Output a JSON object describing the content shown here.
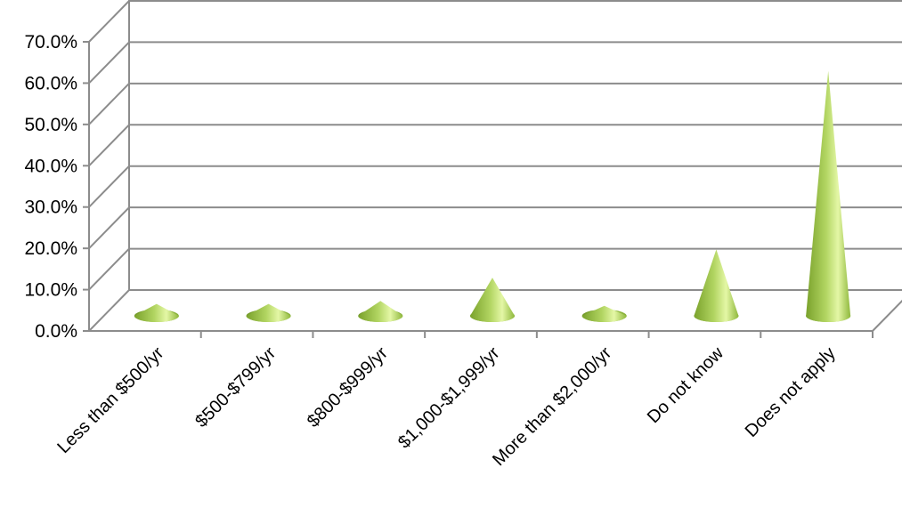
{
  "chart_data": {
    "type": "bar",
    "style": "3d-cone",
    "categories": [
      "Less than $500/yr",
      "$500-$799/yr",
      "$800-$999/yr",
      "$1,000-$1,999/yr",
      "More than $2,000/yr",
      "Do not know",
      "Does not apply"
    ],
    "values": [
      1.5,
      1.5,
      2.3,
      8.5,
      1.0,
      16.0,
      63.5
    ],
    "y_tick_labels": [
      "0.0%",
      "10.0%",
      "20.0%",
      "30.0%",
      "40.0%",
      "50.0%",
      "60.0%",
      "70.0%"
    ],
    "ylim": [
      0,
      70
    ],
    "grid": true,
    "legend": "none",
    "title": "",
    "xlabel": "",
    "ylabel": "",
    "colors": {
      "cone_dark": "#7aa22c",
      "cone_mid": "#b2d562",
      "cone_light": "#e4f7a6",
      "grid": "#8c8c8c",
      "axis": "#8c8c8c"
    }
  }
}
